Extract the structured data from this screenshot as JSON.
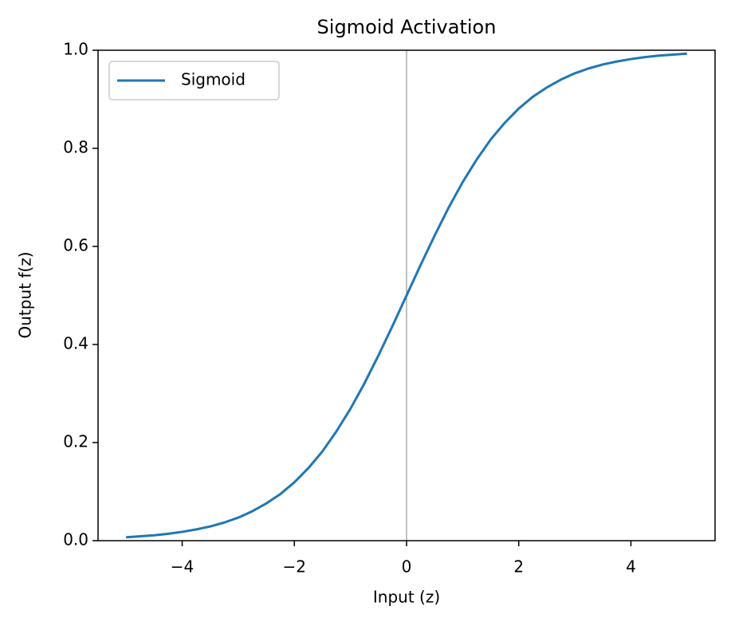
{
  "chart_data": {
    "type": "line",
    "title": "Sigmoid Activation",
    "x_label": "Input (z)",
    "y_label": "Output f(z)",
    "x": [
      -5,
      -4.75,
      -4.5,
      -4.25,
      -4,
      -3.75,
      -3.5,
      -3.25,
      -3,
      -2.75,
      -2.5,
      -2.25,
      -2,
      -1.75,
      -1.5,
      -1.25,
      -1,
      -0.75,
      -0.5,
      -0.25,
      0,
      0.25,
      0.5,
      0.75,
      1,
      1.25,
      1.5,
      1.75,
      2,
      2.25,
      2.5,
      2.75,
      3,
      3.25,
      3.5,
      3.75,
      4,
      4.25,
      4.5,
      4.75,
      5
    ],
    "series": [
      {
        "name": "Sigmoid",
        "color": "#1f77b4",
        "values": [
          0.007,
          0.009,
          0.011,
          0.014,
          0.018,
          0.023,
          0.029,
          0.037,
          0.047,
          0.06,
          0.076,
          0.095,
          0.119,
          0.148,
          0.182,
          0.223,
          0.269,
          0.321,
          0.378,
          0.438,
          0.5,
          0.562,
          0.622,
          0.679,
          0.731,
          0.777,
          0.818,
          0.852,
          0.881,
          0.905,
          0.924,
          0.94,
          0.953,
          0.963,
          0.971,
          0.977,
          0.982,
          0.986,
          0.989,
          0.991,
          0.993
        ]
      }
    ],
    "xlim": [
      -5.5,
      5.5
    ],
    "ylim": [
      0,
      1
    ],
    "xticks": [
      {
        "value": -4,
        "label": "−4"
      },
      {
        "value": -2,
        "label": "−2"
      },
      0,
      2,
      4
    ],
    "yticks": [
      {
        "value": 0,
        "label": "0.0"
      },
      0.2,
      0.4,
      0.6,
      0.8,
      {
        "value": 1,
        "label": "1.0"
      }
    ],
    "vlines": [
      {
        "x": 0,
        "color": "#808080"
      }
    ],
    "legend": "upper left",
    "grid": false
  }
}
